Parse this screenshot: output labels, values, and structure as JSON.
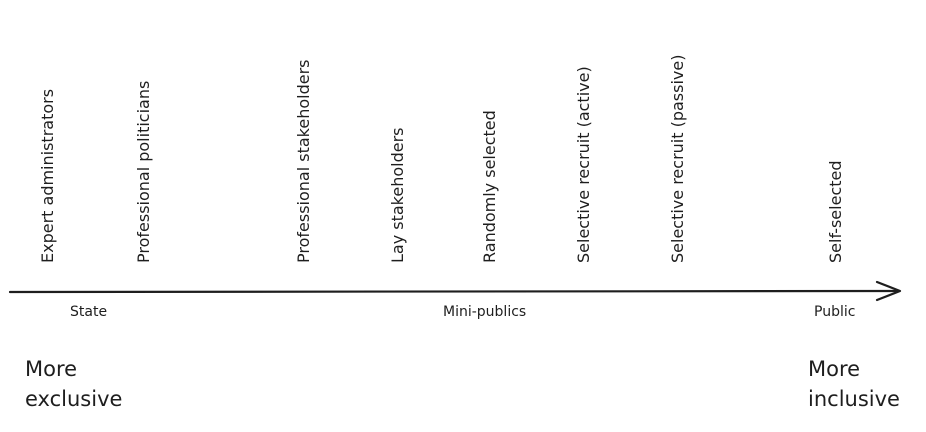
{
  "diagram": {
    "categories": [
      "Expert administrators",
      "Professional politicians",
      "Professional stakeholders",
      "Lay stakeholders",
      "Randomly selected",
      "Selective recruit (active)",
      "Selective recruit (passive)",
      "Self-selected"
    ],
    "regions": {
      "left": "State",
      "middle": "Mini-publics",
      "right": "Public"
    },
    "ends": {
      "left": "More\nexclusive",
      "right": "More\ninclusive"
    },
    "colors": {
      "ink": "#1e1e1e",
      "background": "#ffffff"
    }
  }
}
